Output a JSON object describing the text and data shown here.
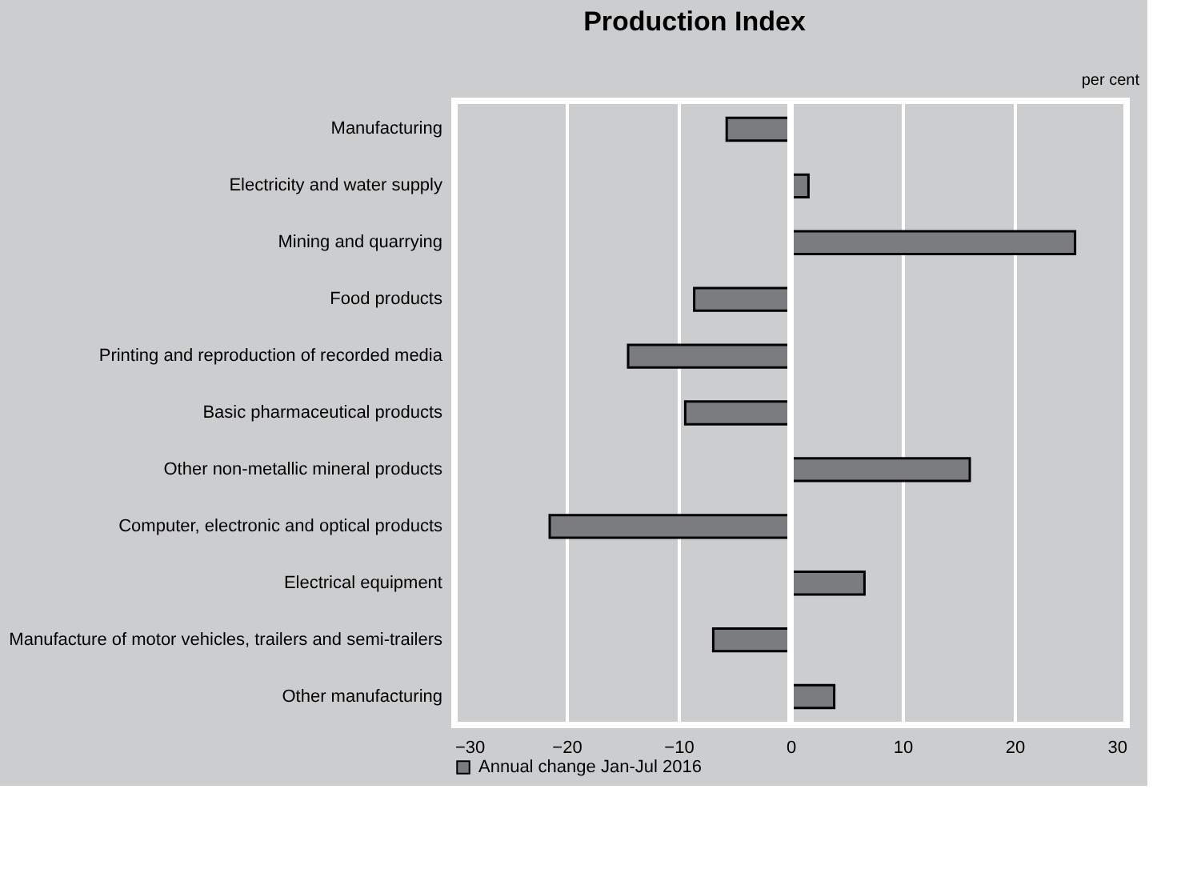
{
  "chart_data": {
    "type": "bar",
    "orientation": "horizontal",
    "title": "Production Index",
    "annotations": [
      "per cent"
    ],
    "categories": [
      "Manufacturing",
      "Electricity and water supply",
      "Mining and quarrying",
      "Food products",
      "Printing and reproduction of recorded media",
      "Basic pharmaceutical products",
      "Other non-metallic mineral products",
      "Computer, electronic and optical products",
      "Electrical equipment",
      "Manufacture of motor vehicles, trailers and semi-trailers",
      "Other manufacturing"
    ],
    "series": [
      {
        "name": "Annual change Jan-Jul 2016",
        "color": "#7b7c80",
        "values": [
          -5.7,
          1.6,
          25.4,
          -8.6,
          -14.5,
          -9.4,
          16.0,
          -21.5,
          6.6,
          -6.9,
          3.9
        ]
      }
    ],
    "xlim": [
      -30,
      30
    ],
    "xticks": [
      -30,
      -20,
      -10,
      0,
      10,
      20,
      30
    ],
    "grid": "x",
    "legend": "bottom left"
  }
}
